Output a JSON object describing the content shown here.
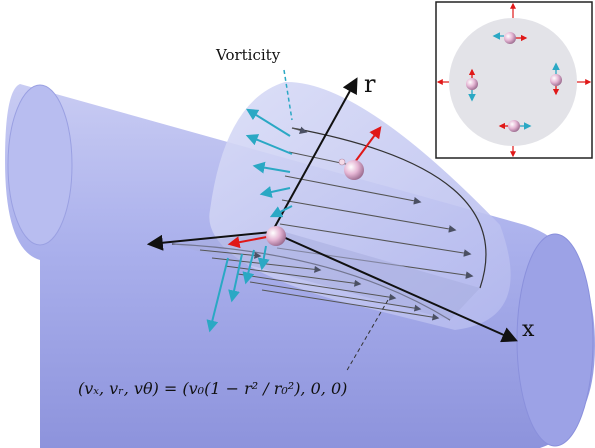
{
  "labels": {
    "vorticity": "Vorticity",
    "axis_r": "r",
    "axis_x": "x",
    "equation": "(vₓ, vᵣ, vθ) = (v₀(1 − r² / r₀²), 0, 0)"
  },
  "colors": {
    "pipe_fill": "#aeb2ec",
    "pipe_dark": "#8f95de",
    "section_fill": "#bfc4ef",
    "arrow_gray": "#555a6e",
    "vorticity_arrow": "#31aec8",
    "red_arrow": "#e01818",
    "particle": "#d8a6c8",
    "inset_circle": "#e3e3e8"
  },
  "icons": {
    "velocity_arrow": "arrow-right-icon",
    "vorticity_arrow": "arrow-icon",
    "particle": "sphere-icon"
  }
}
